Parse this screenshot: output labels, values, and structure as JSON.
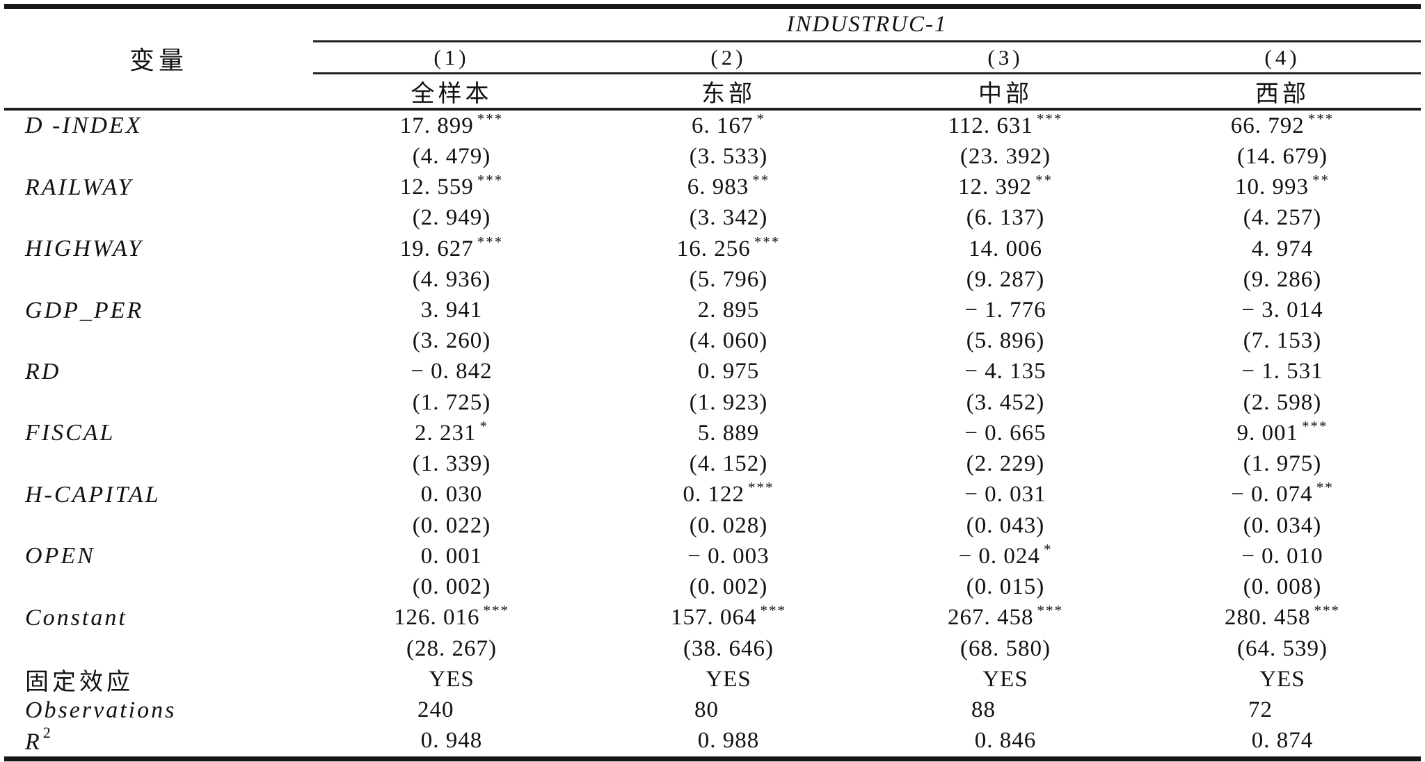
{
  "header": {
    "stub": "变量",
    "span_title": "INDUSTRUC-1",
    "model_numbers": [
      "(1)",
      "(2)",
      "(3)",
      "(4)"
    ],
    "sample_labels": [
      "全样本",
      "东部",
      "中部",
      "西部"
    ]
  },
  "body": {
    "variables": [
      {
        "label": "D -INDEX",
        "coef": [
          {
            "v": "17. 899",
            "sig": "***"
          },
          {
            "v": "6. 167",
            "sig": "*"
          },
          {
            "v": "112. 631",
            "sig": "***"
          },
          {
            "v": "66. 792",
            "sig": "***"
          }
        ],
        "se": [
          "(4. 479)",
          "(3. 533)",
          "(23. 392)",
          "(14. 679)"
        ]
      },
      {
        "label": "RAILWAY",
        "coef": [
          {
            "v": "12. 559",
            "sig": "***"
          },
          {
            "v": "6. 983",
            "sig": "**"
          },
          {
            "v": "12. 392",
            "sig": "**"
          },
          {
            "v": "10. 993",
            "sig": "**"
          }
        ],
        "se": [
          "(2. 949)",
          "(3. 342)",
          "(6. 137)",
          "(4. 257)"
        ]
      },
      {
        "label": "HIGHWAY",
        "coef": [
          {
            "v": "19. 627",
            "sig": "***"
          },
          {
            "v": "16. 256",
            "sig": "***"
          },
          {
            "v": "14. 006",
            "sig": ""
          },
          {
            "v": "4. 974",
            "sig": ""
          }
        ],
        "se": [
          "(4. 936)",
          "(5. 796)",
          "(9. 287)",
          "(9. 286)"
        ]
      },
      {
        "label": "GDP_PER",
        "coef": [
          {
            "v": "3. 941",
            "sig": ""
          },
          {
            "v": "2. 895",
            "sig": ""
          },
          {
            "v": "− 1. 776",
            "sig": ""
          },
          {
            "v": "− 3. 014",
            "sig": ""
          }
        ],
        "se": [
          "(3. 260)",
          "(4. 060)",
          "(5. 896)",
          "(7. 153)"
        ]
      },
      {
        "label": "RD",
        "coef": [
          {
            "v": "− 0. 842",
            "sig": ""
          },
          {
            "v": "0. 975",
            "sig": ""
          },
          {
            "v": "− 4. 135",
            "sig": ""
          },
          {
            "v": "− 1. 531",
            "sig": ""
          }
        ],
        "se": [
          "(1. 725)",
          "(1. 923)",
          "(3. 452)",
          "(2. 598)"
        ]
      },
      {
        "label": "FISCAL",
        "coef": [
          {
            "v": "2. 231",
            "sig": "*"
          },
          {
            "v": "5. 889",
            "sig": ""
          },
          {
            "v": "− 0. 665",
            "sig": ""
          },
          {
            "v": "9. 001",
            "sig": "***"
          }
        ],
        "se": [
          "(1. 339)",
          "(4. 152)",
          "(2. 229)",
          "(1. 975)"
        ]
      },
      {
        "label": "H-CAPITAL",
        "coef": [
          {
            "v": "0. 030",
            "sig": ""
          },
          {
            "v": "0. 122",
            "sig": "***"
          },
          {
            "v": "− 0. 031",
            "sig": ""
          },
          {
            "v": "− 0. 074",
            "sig": "**"
          }
        ],
        "se": [
          "(0. 022)",
          "(0. 028)",
          "(0. 043)",
          "(0. 034)"
        ]
      },
      {
        "label": "OPEN",
        "coef": [
          {
            "v": "0. 001",
            "sig": ""
          },
          {
            "v": "− 0. 003",
            "sig": ""
          },
          {
            "v": "− 0. 024",
            "sig": "*"
          },
          {
            "v": "− 0. 010",
            "sig": ""
          }
        ],
        "se": [
          "(0. 002)",
          "(0. 002)",
          "(0. 015)",
          "(0. 008)"
        ]
      },
      {
        "label": "Constant",
        "coef": [
          {
            "v": "126. 016",
            "sig": "***"
          },
          {
            "v": "157. 064",
            "sig": "***"
          },
          {
            "v": "267. 458",
            "sig": "***"
          },
          {
            "v": "280. 458",
            "sig": "***"
          }
        ],
        "se": [
          "(28. 267)",
          "(38. 646)",
          "(68. 580)",
          "(64. 539)"
        ]
      }
    ],
    "fixed_effects": {
      "label": "固定效应",
      "values": [
        "YES",
        "YES",
        "YES",
        "YES"
      ]
    },
    "observations": {
      "label": "Observations",
      "values": [
        "240",
        "80",
        "88",
        "72"
      ]
    },
    "r_squared": {
      "label": "R",
      "sup": "2",
      "values": [
        "0. 948",
        "0. 988",
        "0. 846",
        "0. 874"
      ]
    }
  }
}
